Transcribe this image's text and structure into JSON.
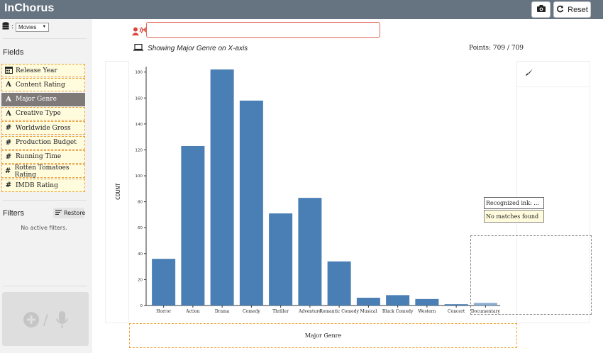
{
  "app": {
    "title": "InChorus"
  },
  "toolbar": {
    "reset_label": "Reset"
  },
  "sidebar": {
    "dataset": {
      "selected": "Movies"
    },
    "fields_title": "Fields",
    "fields": [
      {
        "icon": "calendar-icon",
        "label": "Release Year",
        "active": false
      },
      {
        "icon": "text-type-icon",
        "label": "Content Rating",
        "active": false
      },
      {
        "icon": "text-type-icon",
        "label": "Major Genre",
        "active": true
      },
      {
        "icon": "text-type-icon",
        "label": "Creative Type",
        "active": false
      },
      {
        "icon": "number-type-icon",
        "label": "Worldwide Gross",
        "active": false
      },
      {
        "icon": "number-type-icon",
        "label": "Production Budget",
        "active": false
      },
      {
        "icon": "number-type-icon",
        "label": "Running Time",
        "active": false
      },
      {
        "icon": "number-type-icon",
        "label": "Rotten Tomatoes Rating",
        "active": false
      },
      {
        "icon": "number-type-icon",
        "label": "IMDB Rating",
        "active": false
      }
    ],
    "filters_title": "Filters",
    "restore_label": "Restore",
    "no_filters": "No active filters."
  },
  "main": {
    "showing_text": "Showing Major Genre on X-axis",
    "points_text": "Points: 709 / 709",
    "recognized_ink": "Recognized ink: ...",
    "no_matches": "No matches found"
  },
  "chart_data": {
    "type": "bar",
    "categories": [
      "Horror",
      "Action",
      "Drama",
      "Comedy",
      "Thriller",
      "Adventure",
      "Romantic Comedy",
      "Musical",
      "Black Comedy",
      "Western",
      "Concert",
      "Documentary"
    ],
    "values": [
      36,
      123,
      182,
      158,
      71,
      83,
      34,
      6,
      8,
      5,
      1,
      2
    ],
    "ylim": [
      0,
      182
    ],
    "yticks": [
      "0",
      "20",
      "40",
      "60",
      "80",
      "100",
      "120",
      "140",
      "160",
      "180"
    ],
    "xlabel": "Major Genre",
    "ylabel": "COUNT",
    "colors": {
      "bar": "#4a7fb5",
      "bar_highlight": "#8aaccf"
    }
  }
}
